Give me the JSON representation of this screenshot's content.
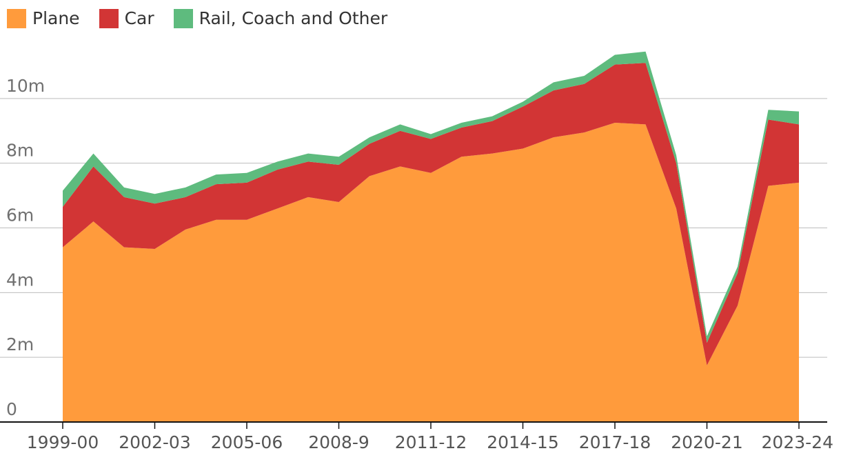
{
  "chart_data": {
    "type": "area",
    "stacked": true,
    "title": "",
    "xlabel": "",
    "ylabel": "",
    "ylim": [
      0,
      12
    ],
    "y_ticks": [
      0,
      2,
      4,
      6,
      8,
      10
    ],
    "y_tick_labels": [
      "0",
      "2m",
      "4m",
      "6m",
      "8m",
      "10m"
    ],
    "categories": [
      "1999-00",
      "2000-01",
      "2001-02",
      "2002-03",
      "2003-04",
      "2004-05",
      "2005-06",
      "2006-07",
      "2007-08",
      "2008-9",
      "2009-10",
      "2010-11",
      "2011-12",
      "2012-13",
      "2013-14",
      "2014-15",
      "2015-16",
      "2016-17",
      "2017-18",
      "2018-19",
      "2019-20",
      "2020-21",
      "2021-22",
      "2022-23",
      "2023-24"
    ],
    "x_tick_labels": [
      "1999-00",
      "2002-03",
      "2005-06",
      "2008-9",
      "2011-12",
      "2014-15",
      "2017-18",
      "2020-21",
      "2023-24"
    ],
    "x_tick_indices": [
      0,
      3,
      6,
      9,
      12,
      15,
      18,
      21,
      24
    ],
    "legend_position": "top-left",
    "series": [
      {
        "name": "Plane",
        "color": "#ff9b3c",
        "values": [
          5.4,
          6.2,
          5.4,
          5.35,
          5.95,
          6.25,
          6.25,
          6.6,
          6.95,
          6.8,
          7.6,
          7.9,
          7.7,
          8.2,
          8.3,
          8.45,
          8.8,
          8.95,
          9.25,
          9.2,
          6.6,
          1.75,
          3.6,
          7.3,
          7.4
        ]
      },
      {
        "name": "Car",
        "color": "#d23535",
        "values": [
          1.25,
          1.7,
          1.55,
          1.4,
          1.0,
          1.1,
          1.15,
          1.2,
          1.1,
          1.15,
          1.0,
          1.1,
          1.05,
          0.9,
          1.0,
          1.3,
          1.45,
          1.5,
          1.8,
          1.9,
          1.4,
          0.7,
          1.0,
          2.05,
          1.8
        ]
      },
      {
        "name": "Rail, Coach and Other",
        "color": "#5ebb7e",
        "values": [
          0.5,
          0.4,
          0.3,
          0.3,
          0.3,
          0.3,
          0.3,
          0.25,
          0.25,
          0.25,
          0.2,
          0.2,
          0.15,
          0.15,
          0.15,
          0.15,
          0.25,
          0.25,
          0.3,
          0.35,
          0.25,
          0.2,
          0.2,
          0.3,
          0.4
        ]
      }
    ]
  }
}
